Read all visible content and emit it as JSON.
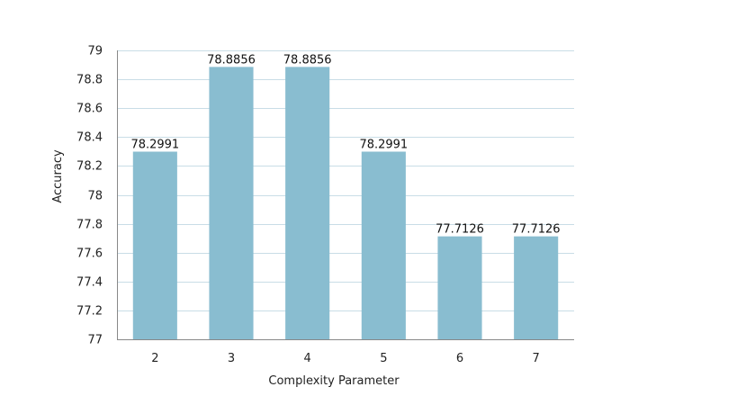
{
  "chart_data": {
    "type": "bar",
    "title": "",
    "xlabel": "Complexity Parameter",
    "ylabel": "Accuracy",
    "categories": [
      "2",
      "3",
      "4",
      "5",
      "6",
      "7"
    ],
    "values": [
      78.2991,
      78.8856,
      78.8856,
      78.2991,
      77.7126,
      77.7126
    ],
    "value_labels": [
      "78.2991",
      "78.8856",
      "78.8856",
      "78.2991",
      "77.7126",
      "77.7126"
    ],
    "ylim": [
      77,
      79
    ],
    "yticks": [
      "77",
      "77.2",
      "77.4",
      "77.6",
      "77.8",
      "78",
      "78.2",
      "78.4",
      "78.6",
      "78.8",
      "79"
    ],
    "grid": true,
    "legend": "none",
    "colors": {
      "bar": "#89bdd0",
      "grid": "#c9dde6",
      "axis": "#888888"
    }
  }
}
